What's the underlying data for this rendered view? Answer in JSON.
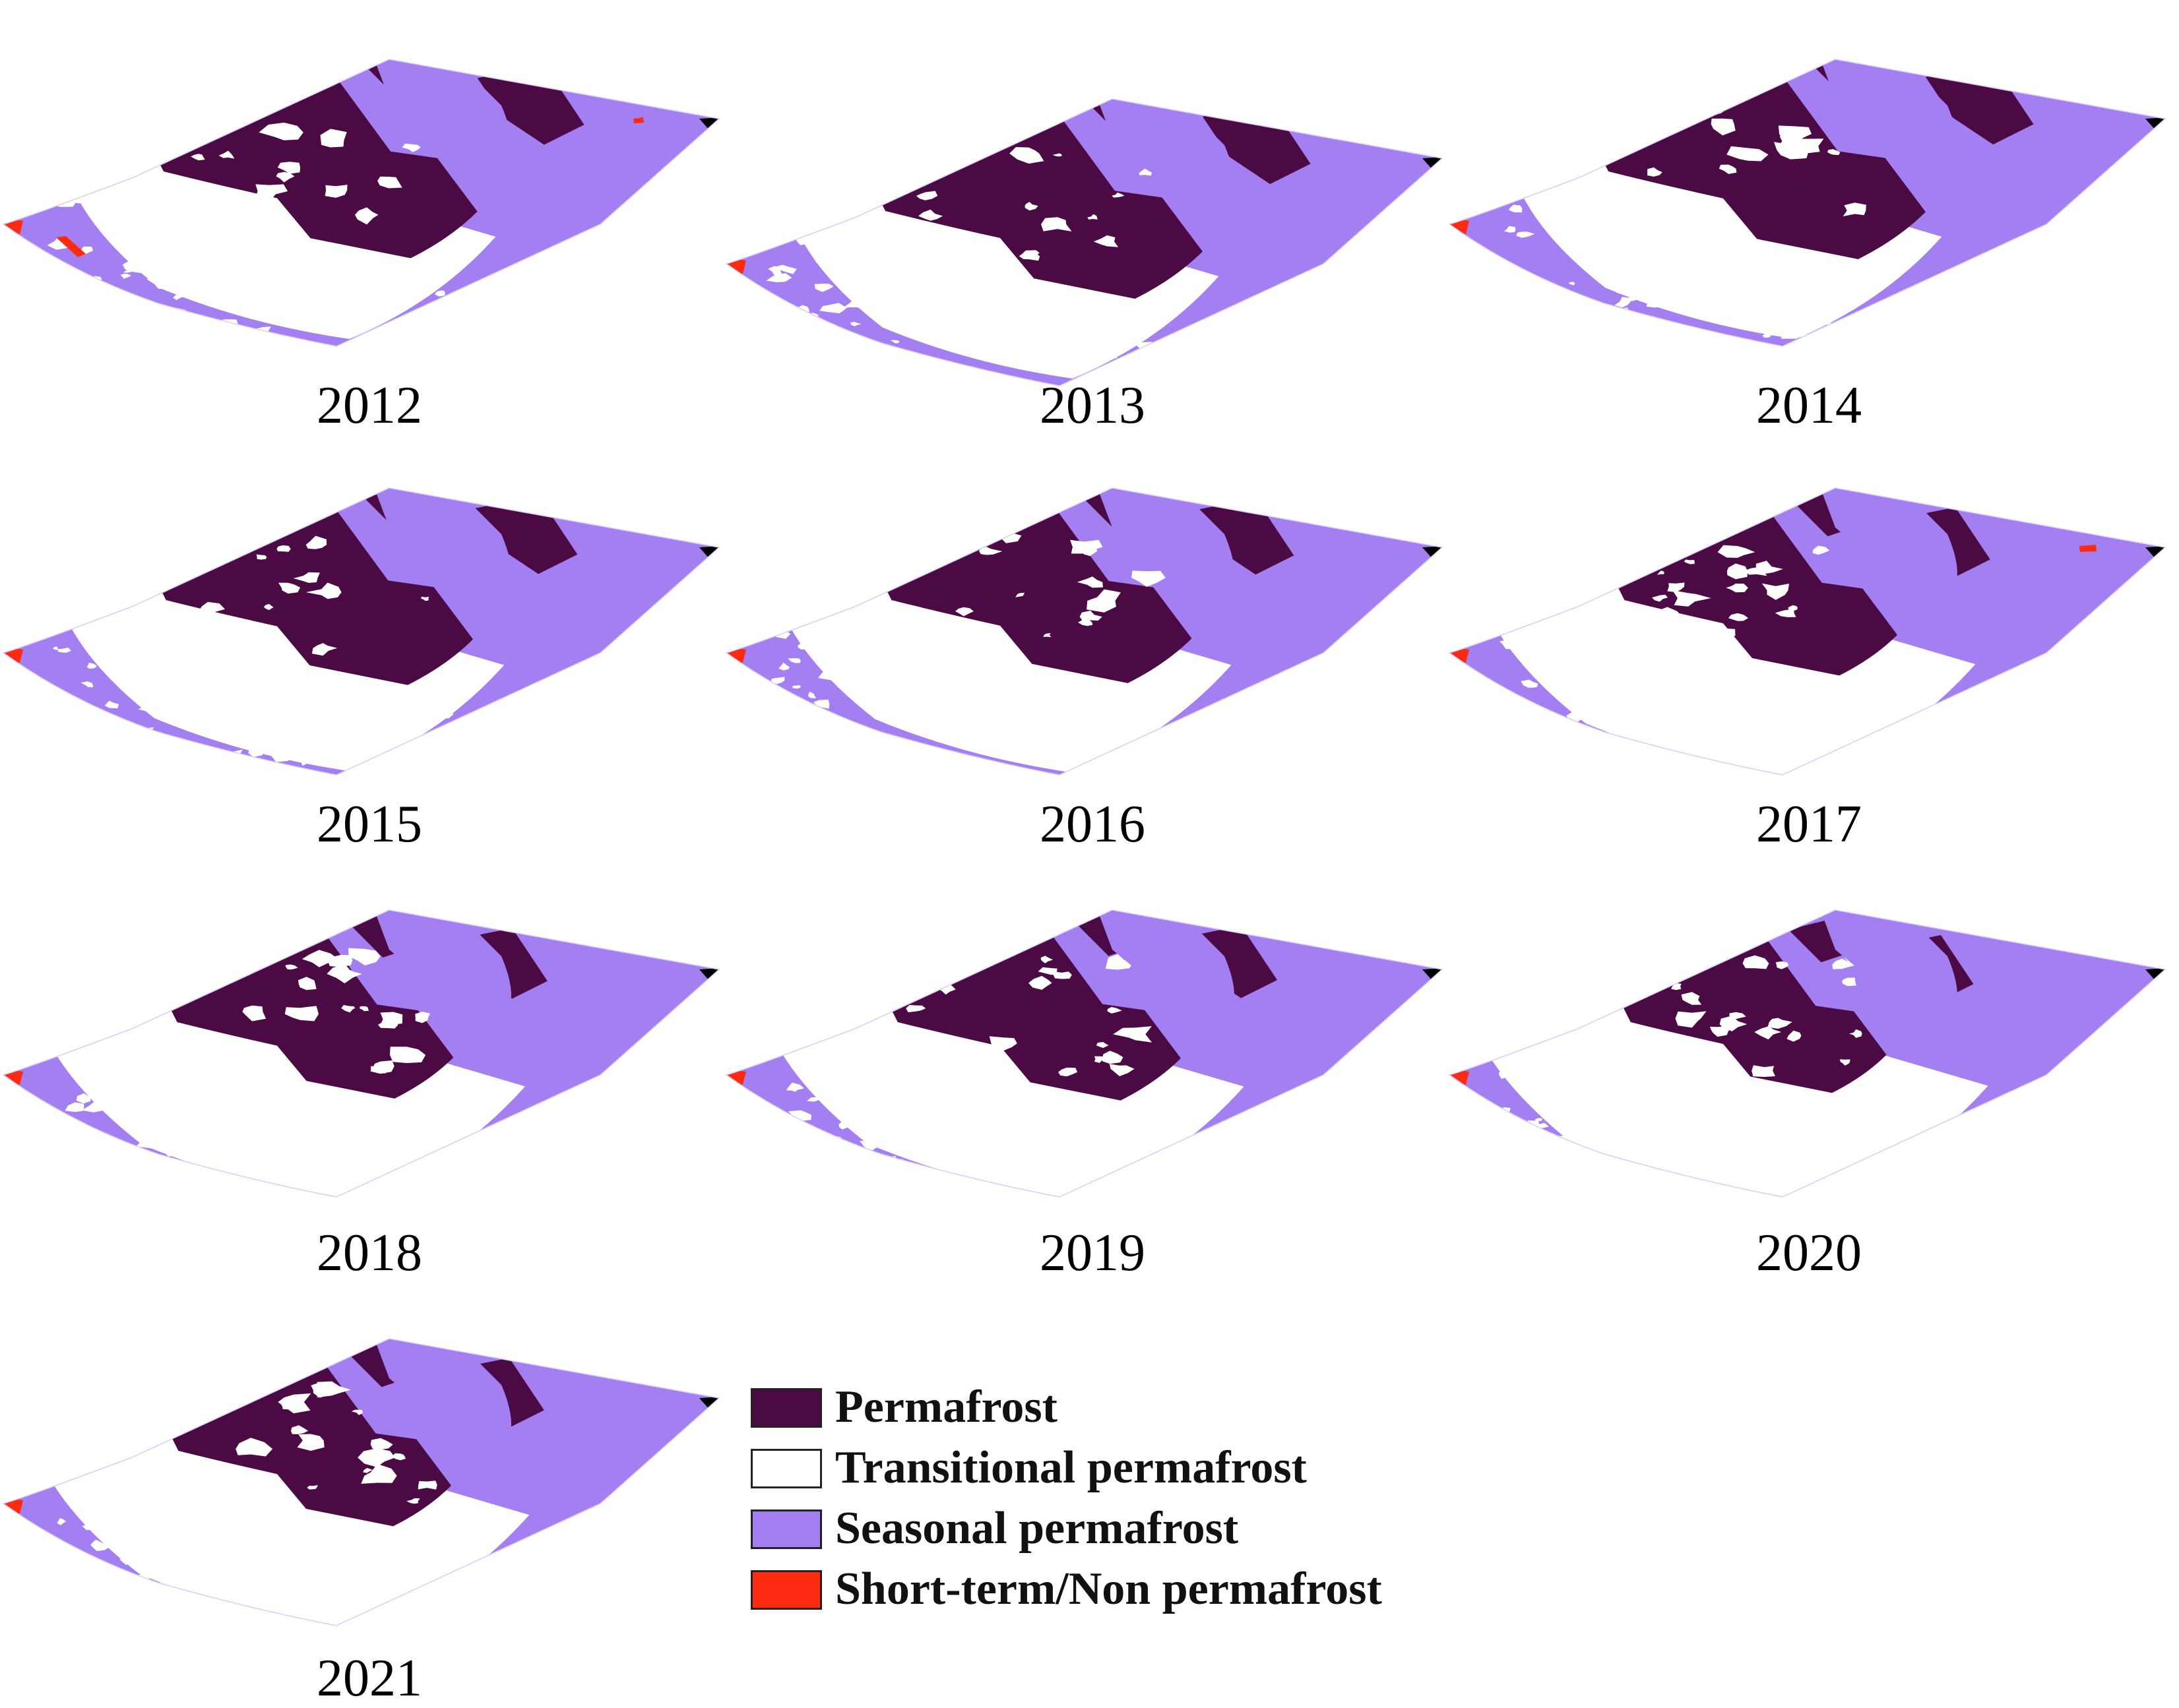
{
  "colors": {
    "permafrost": "#4b0a43",
    "transitional": "#ffffff",
    "seasonal": "#a47ff2",
    "short_term": "#ff2a12",
    "nodata": "#000000"
  },
  "panels": [
    {
      "year": "2012",
      "class_share": {
        "permafrost": 0.42,
        "transitional": 0.14,
        "seasonal": 0.43,
        "short_term": 0.01
      }
    },
    {
      "year": "2013",
      "class_share": {
        "permafrost": 0.43,
        "transitional": 0.14,
        "seasonal": 0.42,
        "short_term": 0.01
      }
    },
    {
      "year": "2014",
      "class_share": {
        "permafrost": 0.43,
        "transitional": 0.14,
        "seasonal": 0.42,
        "short_term": 0.01
      }
    },
    {
      "year": "2015",
      "class_share": {
        "permafrost": 0.4,
        "transitional": 0.16,
        "seasonal": 0.43,
        "short_term": 0.01
      }
    },
    {
      "year": "2016",
      "class_share": {
        "permafrost": 0.38,
        "transitional": 0.17,
        "seasonal": 0.44,
        "short_term": 0.01
      }
    },
    {
      "year": "2017",
      "class_share": {
        "permafrost": 0.3,
        "transitional": 0.22,
        "seasonal": 0.47,
        "short_term": 0.01
      }
    },
    {
      "year": "2018",
      "class_share": {
        "permafrost": 0.31,
        "transitional": 0.21,
        "seasonal": 0.47,
        "short_term": 0.01
      }
    },
    {
      "year": "2019",
      "class_share": {
        "permafrost": 0.33,
        "transitional": 0.2,
        "seasonal": 0.46,
        "short_term": 0.01
      }
    },
    {
      "year": "2020",
      "class_share": {
        "permafrost": 0.25,
        "transitional": 0.25,
        "seasonal": 0.49,
        "short_term": 0.01
      }
    },
    {
      "year": "2021",
      "class_share": {
        "permafrost": 0.3,
        "transitional": 0.22,
        "seasonal": 0.47,
        "short_term": 0.01
      }
    }
  ],
  "legend": [
    {
      "key": "permafrost",
      "label": "Permafrost"
    },
    {
      "key": "transitional",
      "label": "Transitional permafrost"
    },
    {
      "key": "seasonal",
      "label": "Seasonal permafrost"
    },
    {
      "key": "short_term",
      "label": "Short-term/Non permafrost"
    }
  ]
}
